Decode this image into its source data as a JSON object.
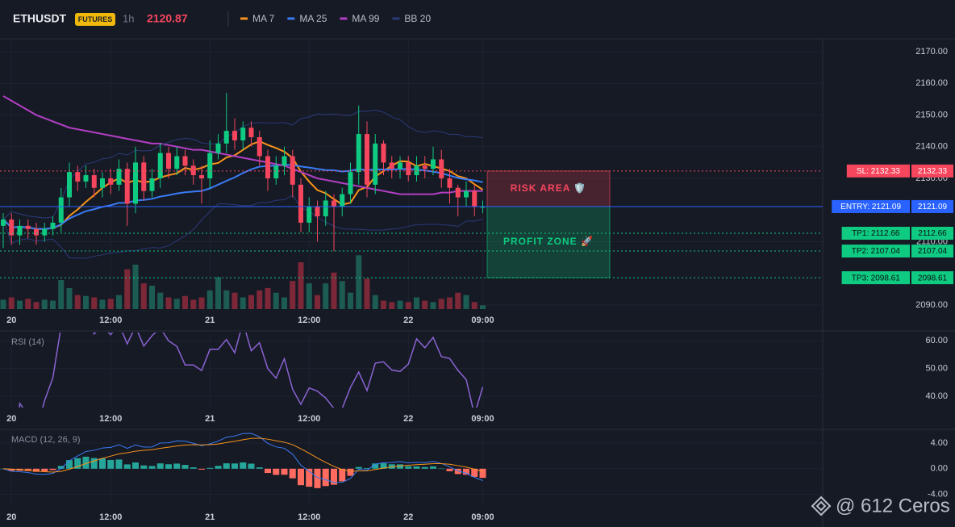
{
  "header": {
    "symbol": "ETHUSDT",
    "badge": "FUTURES",
    "interval": "1h",
    "price": "2120.87"
  },
  "chart_data": [
    {
      "type": "candlestick",
      "categories": [
        null,
        "20",
        null,
        null,
        null,
        null,
        null,
        null,
        null,
        null,
        null,
        null,
        null,
        "12:00",
        null,
        null,
        null,
        null,
        null,
        null,
        null,
        null,
        null,
        null,
        null,
        "21",
        null,
        null,
        null,
        null,
        null,
        null,
        null,
        null,
        null,
        null,
        null,
        "12:00",
        null,
        null,
        null,
        null,
        null,
        null,
        null,
        null,
        null,
        null,
        null,
        "22",
        null,
        null,
        null,
        null,
        null,
        null,
        null,
        null,
        "09:00"
      ],
      "open": [
        2115,
        2117,
        2112,
        2115,
        2114,
        2112,
        2114,
        2116,
        2124,
        2132,
        2129,
        2131,
        2127,
        2130,
        2128,
        2133,
        2122,
        2135,
        2126,
        2130,
        2138,
        2133,
        2137,
        2134,
        2131,
        2130,
        2138,
        2141,
        2145,
        2142,
        2146,
        2143,
        2137,
        2130,
        2134,
        2137,
        2128,
        2116,
        2121,
        2118,
        2123,
        2121,
        2125,
        2132,
        2144,
        2128,
        2141,
        2135,
        2133,
        2135,
        2131,
        2134,
        2133,
        2136,
        2130,
        2127,
        2124,
        2126,
        2121
      ],
      "high": [
        2119,
        2119,
        2117,
        2117,
        2116,
        2116,
        2118,
        2127,
        2135,
        2134,
        2134,
        2133,
        2132,
        2133,
        2136,
        2135,
        2140,
        2137,
        2133,
        2141,
        2140,
        2140,
        2139,
        2136,
        2134,
        2142,
        2144,
        2157,
        2149,
        2148,
        2148,
        2145,
        2139,
        2137,
        2140,
        2139,
        2130,
        2124,
        2123,
        2126,
        2125,
        2127,
        2135,
        2153,
        2148,
        2144,
        2142,
        2137,
        2137,
        2137,
        2137,
        2137,
        2140,
        2139,
        2133,
        2128,
        2129,
        2128,
        2123
      ],
      "low": [
        2108,
        2109,
        2109,
        2111,
        2109,
        2110,
        2112,
        2113,
        2121,
        2126,
        2127,
        2124,
        2124,
        2125,
        2126,
        2115,
        2119,
        2123,
        2124,
        2127,
        2130,
        2131,
        2131,
        2128,
        2122,
        2127,
        2136,
        2138,
        2139,
        2139,
        2140,
        2134,
        2126,
        2128,
        2131,
        2124,
        2113,
        2113,
        2110,
        2115,
        2107,
        2118,
        2122,
        2128,
        2124,
        2125,
        2131,
        2130,
        2130,
        2129,
        2129,
        2130,
        2131,
        2127,
        2122,
        2118,
        2121,
        2118,
        2119
      ],
      "close": [
        2117,
        2112,
        2115,
        2114,
        2112,
        2114,
        2116,
        2124,
        2132,
        2129,
        2131,
        2127,
        2130,
        2128,
        2133,
        2122,
        2135,
        2126,
        2130,
        2138,
        2133,
        2137,
        2134,
        2131,
        2130,
        2138,
        2141,
        2145,
        2142,
        2146,
        2143,
        2137,
        2130,
        2134,
        2137,
        2128,
        2116,
        2121,
        2118,
        2123,
        2121,
        2125,
        2132,
        2144,
        2128,
        2141,
        2135,
        2133,
        2135,
        2131,
        2134,
        2133,
        2136,
        2130,
        2127,
        2124,
        2126,
        2121,
        2121
      ],
      "volume": [
        20,
        25,
        18,
        22,
        15,
        20,
        18,
        62,
        45,
        30,
        28,
        25,
        20,
        22,
        30,
        85,
        95,
        55,
        50,
        35,
        25,
        22,
        28,
        20,
        25,
        40,
        68,
        40,
        35,
        25,
        30,
        40,
        45,
        35,
        25,
        60,
        100,
        55,
        30,
        55,
        78,
        60,
        35,
        115,
        65,
        30,
        18,
        15,
        18,
        15,
        25,
        18,
        15,
        22,
        25,
        35,
        30,
        15,
        8
      ],
      "up_color": "#0ecb81",
      "down_color": "#f6465d",
      "ylim": [
        2088.7,
        2174.1
      ],
      "yticks": [
        {
          "value": 2170,
          "label": "2170.00"
        },
        {
          "value": 2160,
          "label": "2160.00"
        },
        {
          "value": 2150,
          "label": "2150.00"
        },
        {
          "value": 2140,
          "label": "2140.00"
        },
        {
          "value": 2130,
          "label": "2130.00"
        },
        {
          "value": 2110,
          "label": "2110.00"
        },
        {
          "value": 2090,
          "label": "2090.00"
        }
      ],
      "grid": true,
      "series": [
        {
          "name": "MA 7",
          "color": "#f7931a",
          "period": 7
        },
        {
          "name": "MA 25",
          "color": "#3a7bf5",
          "period": 25
        },
        {
          "name": "MA 99",
          "color": "#b33fc4",
          "values": [
            2156,
            2154.5,
            2153,
            2151.5,
            2150,
            2149,
            2148,
            2147,
            2146,
            2145.5,
            2145,
            2144.5,
            2144,
            2143.5,
            2143,
            2142.5,
            2142,
            2141.5,
            2141,
            2141,
            2140.5,
            2140,
            2139.5,
            2139,
            2139,
            2138.5,
            2138,
            2137.5,
            2137,
            2136.5,
            2136,
            2135.5,
            2135,
            2134.5,
            2134,
            2133,
            2132,
            2131,
            2130,
            2129.5,
            2129,
            2128.5,
            2128,
            2127.5,
            2127,
            2126.5,
            2126,
            2125.5,
            2125,
            2125,
            2125,
            2125,
            2125,
            2125.5,
            2125.5,
            2126,
            2126,
            2126,
            2126
          ]
        },
        {
          "name": "BB 20",
          "color": "#2b3a7a",
          "period": 20
        }
      ],
      "levels": [
        {
          "label": "SL: 2132.33",
          "value": 2132.33,
          "color": "#f6465d"
        },
        {
          "label": "ENTRY: 2121.09",
          "value": 2121.09,
          "color": "#2962ff"
        },
        {
          "label": "TP1: 2112.66",
          "value": 2112.66,
          "color": "#0ecb81"
        },
        {
          "label": "TP2: 2107.04",
          "value": 2107.04,
          "color": "#0ecb81"
        },
        {
          "label": "TP3: 2098.61",
          "value": 2098.61,
          "color": "#0ecb81"
        }
      ],
      "zones": [
        {
          "label": "RISK AREA 🛡️",
          "from": 2132.33,
          "to": 2121.09,
          "color": "#f6465d"
        },
        {
          "label": "PROFIT ZONE 🚀",
          "from": 2121.09,
          "to": 2098.61,
          "color": "#0ecb81"
        }
      ]
    },
    {
      "type": "rsi",
      "title": "RSI (14)",
      "period": 14,
      "color": "#8a63d2",
      "ylim": [
        36,
        63
      ],
      "yticks": [
        {
          "value": 60,
          "label": "60.00"
        },
        {
          "value": 50,
          "label": "50.00"
        },
        {
          "value": 40,
          "label": "40.00"
        }
      ],
      "grid": true
    },
    {
      "type": "macd",
      "title": "MACD (12, 26, 9)",
      "fast": 12,
      "slow": 26,
      "signal": 9,
      "macd_color": "#3a7bf5",
      "signal_color": "#f7931a",
      "pos_color": "#26a69a",
      "neg_color": "#ff6b5e",
      "ylim": [
        -5.8,
        6
      ],
      "yticks": [
        {
          "value": 4,
          "label": "4.00"
        },
        {
          "value": 0,
          "label": "0.00"
        },
        {
          "value": -4,
          "label": "-4.00"
        }
      ],
      "grid": true
    }
  ],
  "watermark": "@ 612 Ceros"
}
